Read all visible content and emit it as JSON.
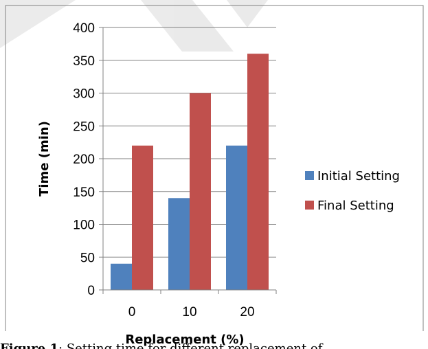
{
  "chart_data": {
    "type": "bar",
    "categories": [
      "0",
      "10",
      "20"
    ],
    "series": [
      {
        "name": "Initial Setting",
        "values": [
          40,
          140,
          220
        ],
        "color": "#4f81bd"
      },
      {
        "name": "Final Setting",
        "values": [
          220,
          300,
          360
        ],
        "color": "#c0504d"
      }
    ],
    "xlabel": "Replacement (%)",
    "ylabel": "Time (min)",
    "ylim": [
      0,
      400
    ],
    "yticks": [
      0,
      50,
      100,
      150,
      200,
      250,
      300,
      350,
      400
    ],
    "grid": true,
    "legend": "right"
  },
  "caption": {
    "label": "Figure 1",
    "text": ": Setting time for different replacement of"
  }
}
